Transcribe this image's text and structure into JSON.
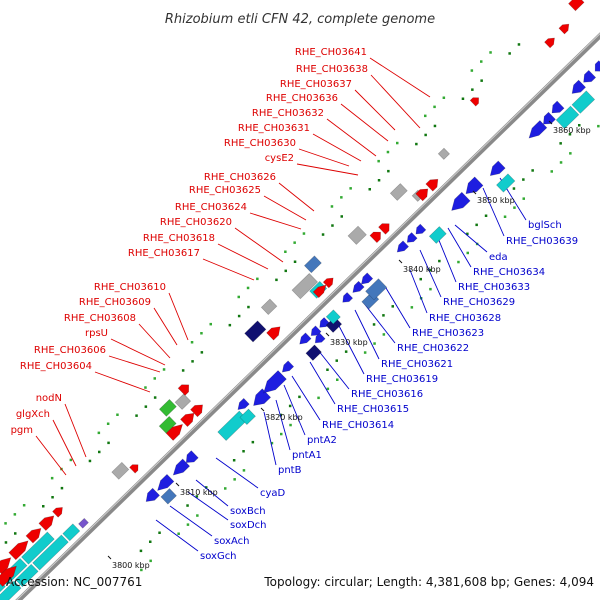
{
  "title": "Rhizobium etli CFN 42, complete genome",
  "footer": {
    "accession": "Accession: NC_007761",
    "summary": "Topology: circular; Length: 4,381,608 bp; Genes: 4,094"
  },
  "colors": {
    "plus_label": "#dd0000",
    "minus_label": "#0000cc",
    "backbone": "#888888",
    "red_gene": "#ee0000",
    "blue_gene": "#1e1ee0",
    "cyan_gene": "#11cccc",
    "green_gene": "#33bb33",
    "gray_gene": "#aaaaaa",
    "navy_gene": "#101070",
    "steel_gene": "#4477bb"
  },
  "ticks": [
    "3800 kbp",
    "3810 kbp",
    "3820 kbp",
    "3830 kbp",
    "3840 kbp",
    "3850 kbp",
    "3860 kbp"
  ],
  "plus_labels": [
    "RHE_CH03641",
    "RHE_CH03638",
    "RHE_CH03637",
    "RHE_CH03636",
    "RHE_CH03632",
    "RHE_CH03631",
    "RHE_CH03630",
    "cysE2",
    "RHE_CH03626",
    "RHE_CH03625",
    "RHE_CH03624",
    "RHE_CH03620",
    "RHE_CH03618",
    "RHE_CH03617",
    "RHE_CH03610",
    "RHE_CH03609",
    "RHE_CH03608",
    "rpsU",
    "RHE_CH03606",
    "RHE_CH03604",
    "nodN",
    "glgXch",
    "pgm"
  ],
  "minus_labels": [
    "bglSch",
    "RHE_CH03639",
    "eda",
    "RHE_CH03634",
    "RHE_CH03633",
    "RHE_CH03629",
    "RHE_CH03628",
    "RHE_CH03623",
    "RHE_CH03622",
    "RHE_CH03621",
    "RHE_CH03619",
    "RHE_CH03616",
    "RHE_CH03615",
    "RHE_CH03614",
    "pntA2",
    "pntA1",
    "pntB",
    "cyaD",
    "soxBch",
    "soxDch",
    "soxAch",
    "soxGch"
  ]
}
